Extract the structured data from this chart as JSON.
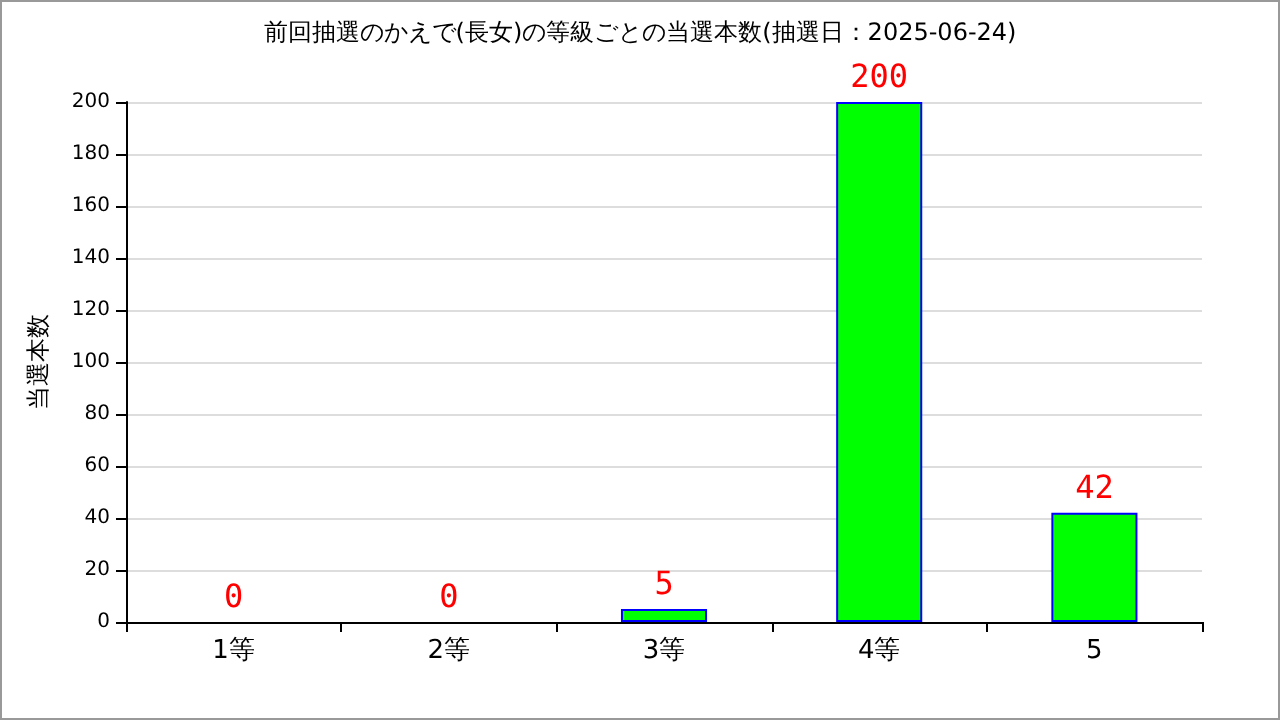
{
  "chart_data": {
    "type": "bar",
    "title": "前回抽選のかえで(長女)の等級ごとの当選本数(抽選日：2025-06-24)",
    "ylabel": "当選本数",
    "categories": [
      "1等",
      "2等",
      "3等",
      "4等",
      "5"
    ],
    "values": [
      0,
      0,
      5,
      200,
      42
    ],
    "color": "#00ff00",
    "ylim": [
      0,
      200
    ],
    "yticks": [
      0,
      20,
      40,
      60,
      80,
      100,
      120,
      140,
      160,
      180,
      200
    ],
    "grid": "y",
    "data_labels": true
  }
}
